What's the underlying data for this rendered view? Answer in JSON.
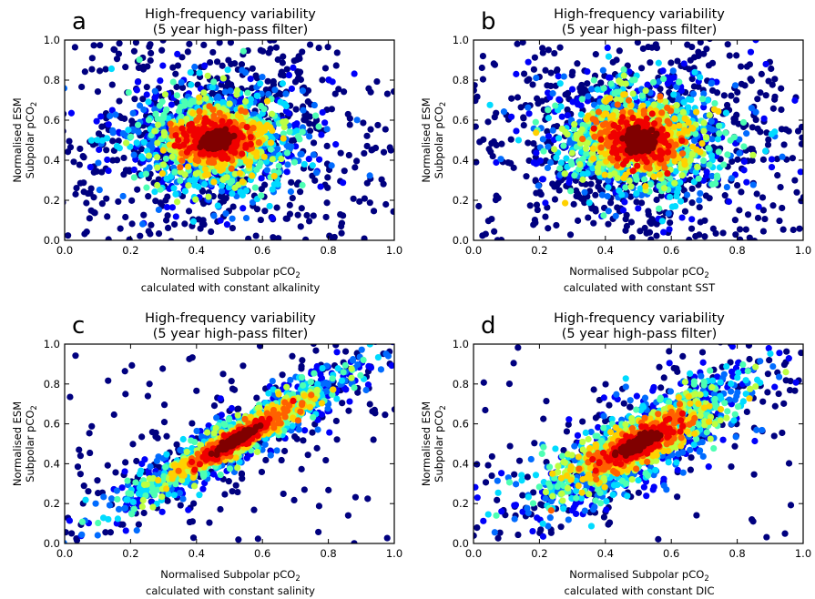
{
  "chart_data": [
    {
      "type": "scatter",
      "letter": "a",
      "title_line1": "High-frequency variability",
      "title_line2": "(5 year high-pass filter)",
      "ylabel_line1": "Normalised ESM",
      "ylabel_line2": "Subpolar pCO",
      "ylabel_sub": "2",
      "xlabel_line1": "Normalised Subpolar pCO",
      "xlabel_sub": "2",
      "xlabel_line2": "calculated with constant alkalinity",
      "xlim": [
        0.0,
        1.0
      ],
      "ylim": [
        0.0,
        1.0
      ],
      "xticks": [
        "0.0",
        "0.2",
        "0.4",
        "0.6",
        "0.8",
        "1.0"
      ],
      "yticks": [
        "0.0",
        "0.2",
        "0.4",
        "0.6",
        "0.8",
        "1.0"
      ],
      "density_center": [
        0.46,
        0.5
      ],
      "spread_x": 0.1,
      "spread_y": 0.11,
      "correlation": 0.0
    },
    {
      "type": "scatter",
      "letter": "b",
      "title_line1": "High-frequency variability",
      "title_line2": "(5 year high-pass filter)",
      "ylabel_line1": "Normalised ESM",
      "ylabel_line2": "Subpolar pCO",
      "ylabel_sub": "2",
      "xlabel_line1": "Normalised Subpolar pCO",
      "xlabel_sub": "2",
      "xlabel_line2": "calculated with constant SST",
      "xlim": [
        0.0,
        1.0
      ],
      "ylim": [
        0.0,
        1.0
      ],
      "xticks": [
        "0.0",
        "0.2",
        "0.4",
        "0.6",
        "0.8",
        "1.0"
      ],
      "yticks": [
        "0.0",
        "0.2",
        "0.4",
        "0.6",
        "0.8",
        "1.0"
      ],
      "density_center": [
        0.5,
        0.5
      ],
      "spread_x": 0.11,
      "spread_y": 0.12,
      "correlation": 0.0
    },
    {
      "type": "scatter",
      "letter": "c",
      "title_line1": "High-frequency variability",
      "title_line2": "(5 year high-pass filter)",
      "ylabel_line1": "Normalised ESM",
      "ylabel_line2": "Subpolar pCO",
      "ylabel_sub": "2",
      "xlabel_line1": "Normalised Subpolar pCO",
      "xlabel_sub": "2",
      "xlabel_line2": "calculated with constant salinity",
      "xlim": [
        0.0,
        1.0
      ],
      "ylim": [
        0.0,
        1.0
      ],
      "xticks": [
        "0.0",
        "0.2",
        "0.4",
        "0.6",
        "0.8",
        "1.0"
      ],
      "yticks": [
        "0.0",
        "0.2",
        "0.4",
        "0.6",
        "0.8",
        "1.0"
      ],
      "density_center": [
        0.52,
        0.52
      ],
      "spread_x": 0.14,
      "spread_y": 0.14,
      "correlation": 0.94
    },
    {
      "type": "scatter",
      "letter": "d",
      "title_line1": "High-frequency variability",
      "title_line2": "(5 year high-pass filter)",
      "ylabel_line1": "Normalised ESM",
      "ylabel_line2": "Subpolar pCO",
      "ylabel_sub": "2",
      "xlabel_line1": "Normalised Subpolar pCO",
      "xlabel_sub": "2",
      "xlabel_line2": "calculated with constant DIC",
      "xlim": [
        0.0,
        1.0
      ],
      "ylim": [
        0.0,
        1.0
      ],
      "xticks": [
        "0.0",
        "0.2",
        "0.4",
        "0.6",
        "0.8",
        "1.0"
      ],
      "yticks": [
        "0.0",
        "0.2",
        "0.4",
        "0.6",
        "0.8",
        "1.0"
      ],
      "density_center": [
        0.5,
        0.5
      ],
      "spread_x": 0.13,
      "spread_y": 0.13,
      "correlation": 0.8
    }
  ],
  "colormap": [
    "#00007f",
    "#0000ff",
    "#007fff",
    "#00ffff",
    "#7fff7f",
    "#ffff00",
    "#ff7f00",
    "#ff0000",
    "#7f0000"
  ]
}
